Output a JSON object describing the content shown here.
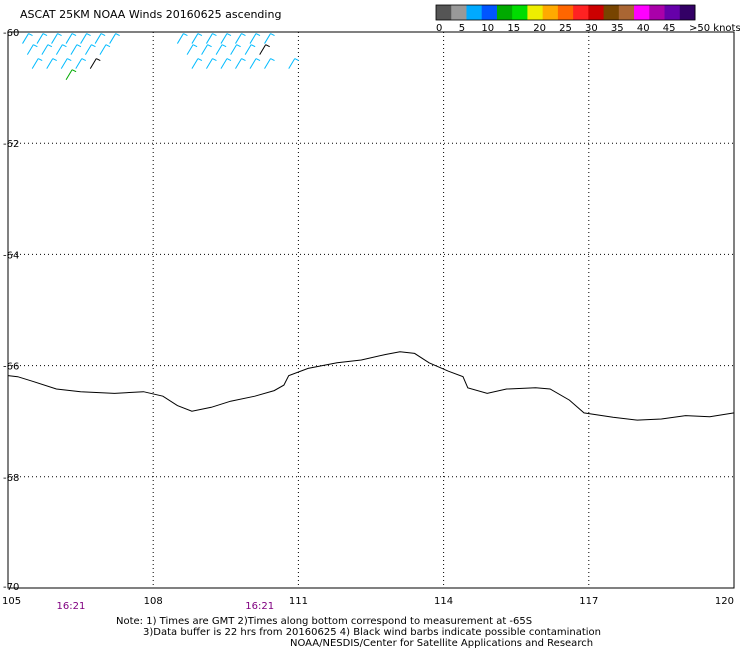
{
  "title": "ASCAT 25KM NOAA Winds 20160625 ascending",
  "legend": {
    "colors": [
      "#555555",
      "#999999",
      "#00aaff",
      "#0055ff",
      "#00aa00",
      "#00dd00",
      "#eeee00",
      "#ffaa00",
      "#ff6600",
      "#ff2222",
      "#cc0000",
      "#774400",
      "#aa6633",
      "#ff00ff",
      "#aa00aa",
      "#6600aa",
      "#330066"
    ],
    "ticks": [
      "0",
      "5",
      "10",
      "15",
      "20",
      "25",
      "30",
      "35",
      "40",
      "45",
      ">50 knots"
    ]
  },
  "chart_data": {
    "type": "map",
    "x_axis": {
      "ticks": [
        "105",
        "108",
        "111",
        "114",
        "117",
        "120"
      ],
      "range": [
        105,
        120
      ]
    },
    "y_axis": {
      "ticks": [
        "-60",
        "-62",
        "-64",
        "-66",
        "-68",
        "-70"
      ],
      "range": [
        -70,
        -60
      ]
    },
    "time_labels": [
      {
        "text": "16:21",
        "lon": 106.3
      },
      {
        "text": "16:21",
        "lon": 110.2
      }
    ],
    "coastline": [
      [
        105.0,
        -66.18
      ],
      [
        105.2,
        -66.2
      ],
      [
        105.5,
        -66.28
      ],
      [
        106.0,
        -66.42
      ],
      [
        106.5,
        -66.47
      ],
      [
        107.2,
        -66.5
      ],
      [
        107.8,
        -66.47
      ],
      [
        108.2,
        -66.55
      ],
      [
        108.5,
        -66.72
      ],
      [
        108.8,
        -66.82
      ],
      [
        109.2,
        -66.75
      ],
      [
        109.6,
        -66.64
      ],
      [
        110.1,
        -66.55
      ],
      [
        110.5,
        -66.45
      ],
      [
        110.7,
        -66.35
      ],
      [
        110.8,
        -66.18
      ],
      [
        111.2,
        -66.05
      ],
      [
        111.8,
        -65.95
      ],
      [
        112.3,
        -65.9
      ],
      [
        112.8,
        -65.8
      ],
      [
        113.1,
        -65.75
      ],
      [
        113.4,
        -65.78
      ],
      [
        113.7,
        -65.95
      ],
      [
        114.1,
        -66.1
      ],
      [
        114.4,
        -66.2
      ],
      [
        114.5,
        -66.4
      ],
      [
        114.9,
        -66.5
      ],
      [
        115.3,
        -66.42
      ],
      [
        115.9,
        -66.4
      ],
      [
        116.2,
        -66.42
      ],
      [
        116.6,
        -66.62
      ],
      [
        116.9,
        -66.85
      ],
      [
        117.5,
        -66.93
      ],
      [
        118.0,
        -66.98
      ],
      [
        118.5,
        -66.96
      ],
      [
        119.0,
        -66.9
      ],
      [
        119.5,
        -66.92
      ],
      [
        120.0,
        -66.85
      ]
    ],
    "wind_barbs": [
      {
        "lon": 105.3,
        "lat": -60.1,
        "knots": 8
      },
      {
        "lon": 105.6,
        "lat": -60.1,
        "knots": 7
      },
      {
        "lon": 105.9,
        "lat": -60.1,
        "knots": 8
      },
      {
        "lon": 106.2,
        "lat": -60.1,
        "knots": 9
      },
      {
        "lon": 106.5,
        "lat": -60.1,
        "knots": 7
      },
      {
        "lon": 106.8,
        "lat": -60.1,
        "knots": 8
      },
      {
        "lon": 107.1,
        "lat": -60.1,
        "knots": 9
      },
      {
        "lon": 105.4,
        "lat": -60.3,
        "knots": 8
      },
      {
        "lon": 105.7,
        "lat": -60.3,
        "knots": 7
      },
      {
        "lon": 106.0,
        "lat": -60.3,
        "knots": 9
      },
      {
        "lon": 106.3,
        "lat": -60.3,
        "knots": 8
      },
      {
        "lon": 106.6,
        "lat": -60.3,
        "knots": 7
      },
      {
        "lon": 106.9,
        "lat": -60.3,
        "knots": 8
      },
      {
        "lon": 105.5,
        "lat": -60.55,
        "knots": 8
      },
      {
        "lon": 105.8,
        "lat": -60.55,
        "knots": 9
      },
      {
        "lon": 106.1,
        "lat": -60.55,
        "knots": 7
      },
      {
        "lon": 106.4,
        "lat": -60.55,
        "knots": 6
      },
      {
        "lon": 106.7,
        "lat": -60.55,
        "knots": 0
      },
      {
        "lon": 106.2,
        "lat": -60.75,
        "knots": 18
      },
      {
        "lon": 108.5,
        "lat": -60.1,
        "knots": 8
      },
      {
        "lon": 108.8,
        "lat": -60.1,
        "knots": 7
      },
      {
        "lon": 109.1,
        "lat": -60.1,
        "knots": 8
      },
      {
        "lon": 109.4,
        "lat": -60.1,
        "knots": 9
      },
      {
        "lon": 109.7,
        "lat": -60.1,
        "knots": 8
      },
      {
        "lon": 110.0,
        "lat": -60.1,
        "knots": 7
      },
      {
        "lon": 110.3,
        "lat": -60.1,
        "knots": 6
      },
      {
        "lon": 108.7,
        "lat": -60.3,
        "knots": 7
      },
      {
        "lon": 109.0,
        "lat": -60.3,
        "knots": 8
      },
      {
        "lon": 109.3,
        "lat": -60.3,
        "knots": 9
      },
      {
        "lon": 109.6,
        "lat": -60.3,
        "knots": 8
      },
      {
        "lon": 109.9,
        "lat": -60.3,
        "knots": 7
      },
      {
        "lon": 110.2,
        "lat": -60.3,
        "knots": 0
      },
      {
        "lon": 108.8,
        "lat": -60.55,
        "knots": 8
      },
      {
        "lon": 109.1,
        "lat": -60.55,
        "knots": 9
      },
      {
        "lon": 109.4,
        "lat": -60.55,
        "knots": 7
      },
      {
        "lon": 109.7,
        "lat": -60.55,
        "knots": 8
      },
      {
        "lon": 110.0,
        "lat": -60.55,
        "knots": 6
      },
      {
        "lon": 110.3,
        "lat": -60.55,
        "knots": 7
      },
      {
        "lon": 110.8,
        "lat": -60.55,
        "knots": 6
      }
    ]
  },
  "notes": [
    "Note: 1) Times are GMT 2)Times along bottom correspond to measurement at -65S",
    "3)Data buffer is 22 hrs from 20160625 4) Black wind barbs indicate possible contamination",
    "NOAA/NESDIS/Center for Satellite Applications and Research"
  ]
}
